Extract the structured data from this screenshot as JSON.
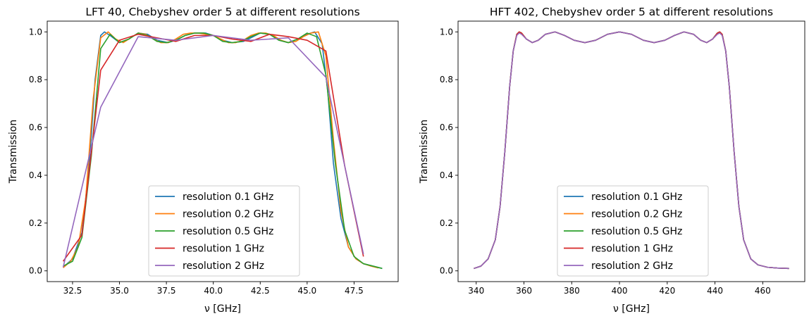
{
  "chart_data": [
    {
      "type": "line",
      "title": "LFT 40, Chebyshev order 5 at different resolutions",
      "xlabel": "ν [GHz]",
      "ylabel": "Transmission",
      "xlim": [
        31.15,
        49.85
      ],
      "ylim": [
        -0.045,
        1.045
      ],
      "xticks": [
        32.5,
        35.0,
        37.5,
        40.0,
        42.5,
        45.0,
        47.5
      ],
      "xtick_labels": [
        "32.5",
        "35.0",
        "37.5",
        "40.0",
        "42.5",
        "45.0",
        "47.5"
      ],
      "yticks": [
        0.0,
        0.2,
        0.4,
        0.6,
        0.8,
        1.0
      ],
      "ytick_labels": [
        "0.0",
        "0.2",
        "0.4",
        "0.6",
        "0.8",
        "1.0"
      ],
      "grid": false,
      "legend_position": "lower-center",
      "series": [
        {
          "name": "resolution 0.1 GHz",
          "color": "#1f77b4",
          "x": [
            32.0,
            32.5,
            33.0,
            33.4,
            33.7,
            34.0,
            34.2,
            34.5,
            35.0,
            35.5,
            36.0,
            36.5,
            37.0,
            37.6,
            38.0,
            38.5,
            39.0,
            39.6,
            40.0,
            40.5,
            41.0,
            41.6,
            42.0,
            42.5,
            43.0,
            43.5,
            44.0,
            44.5,
            45.0,
            45.4,
            45.8,
            46.1,
            46.4,
            46.8,
            47.2,
            47.6,
            48.0,
            48.5,
            49.0
          ],
          "y": [
            0.015,
            0.05,
            0.16,
            0.45,
            0.8,
            0.985,
            1.0,
            0.985,
            0.955,
            0.97,
            0.995,
            0.99,
            0.965,
            0.955,
            0.965,
            0.985,
            0.995,
            0.995,
            0.985,
            0.965,
            0.955,
            0.96,
            0.975,
            0.995,
            0.99,
            0.965,
            0.955,
            0.97,
            0.99,
            1.0,
            0.95,
            0.75,
            0.45,
            0.22,
            0.1,
            0.05,
            0.03,
            0.02,
            0.01
          ]
        },
        {
          "name": "resolution 0.2 GHz",
          "color": "#ff7f0e",
          "x": [
            32.0,
            32.4,
            32.8,
            33.2,
            33.6,
            34.0,
            34.4,
            34.8,
            35.2,
            35.6,
            36.0,
            36.4,
            36.8,
            37.2,
            37.6,
            38.0,
            38.4,
            38.8,
            39.2,
            39.6,
            40.0,
            40.4,
            40.8,
            41.2,
            41.6,
            42.0,
            42.4,
            42.8,
            43.2,
            43.6,
            44.0,
            44.4,
            44.8,
            45.2,
            45.6,
            46.0,
            46.4,
            46.8,
            47.2,
            47.6,
            48.0,
            48.4,
            48.8
          ],
          "y": [
            0.013,
            0.04,
            0.1,
            0.3,
            0.72,
            0.975,
            1.0,
            0.97,
            0.955,
            0.975,
            0.995,
            0.99,
            0.97,
            0.955,
            0.955,
            0.97,
            0.99,
            0.995,
            0.995,
            0.99,
            0.985,
            0.97,
            0.955,
            0.955,
            0.965,
            0.985,
            0.995,
            0.995,
            0.985,
            0.965,
            0.955,
            0.96,
            0.98,
            0.995,
            1.0,
            0.9,
            0.55,
            0.25,
            0.1,
            0.05,
            0.03,
            0.02,
            0.012
          ]
        },
        {
          "name": "resolution 0.5 GHz",
          "color": "#2ca02c",
          "x": [
            32.0,
            32.5,
            33.0,
            33.5,
            34.0,
            34.5,
            35.0,
            35.5,
            36.0,
            36.5,
            37.0,
            37.5,
            38.0,
            38.5,
            39.0,
            39.5,
            40.0,
            40.5,
            41.0,
            41.5,
            42.0,
            42.5,
            43.0,
            43.5,
            44.0,
            44.5,
            45.0,
            45.5,
            46.0,
            46.5,
            47.0,
            47.5,
            48.0,
            48.5,
            49.0
          ],
          "y": [
            0.02,
            0.04,
            0.14,
            0.48,
            0.93,
            0.99,
            0.955,
            0.97,
            0.995,
            0.985,
            0.96,
            0.955,
            0.965,
            0.985,
            0.995,
            0.995,
            0.985,
            0.96,
            0.955,
            0.96,
            0.98,
            0.995,
            0.99,
            0.965,
            0.955,
            0.97,
            0.995,
            0.98,
            0.82,
            0.45,
            0.17,
            0.06,
            0.03,
            0.02,
            0.01
          ]
        },
        {
          "name": "resolution 1 GHz",
          "color": "#d62728",
          "x": [
            32.0,
            33.0,
            34.0,
            35.0,
            36.0,
            37.0,
            38.0,
            39.0,
            40.0,
            41.0,
            42.0,
            43.0,
            44.0,
            45.0,
            46.0,
            47.0,
            48.0
          ],
          "y": [
            0.04,
            0.15,
            0.84,
            0.965,
            0.99,
            0.975,
            0.96,
            0.985,
            0.985,
            0.97,
            0.96,
            0.99,
            0.98,
            0.965,
            0.92,
            0.44,
            0.06
          ]
        },
        {
          "name": "resolution 2 GHz",
          "color": "#9467bd",
          "x": [
            32.0,
            34.0,
            36.0,
            38.0,
            40.0,
            42.0,
            44.0,
            46.0,
            48.0
          ],
          "y": [
            0.015,
            0.685,
            0.98,
            0.965,
            0.985,
            0.965,
            0.975,
            0.81,
            0.07
          ]
        }
      ]
    },
    {
      "type": "line",
      "title": "HFT 402, Chebyshev order 5 at different resolutions",
      "xlabel": "ν [GHz]",
      "ylabel": "Transmission",
      "xlim": [
        332.4,
        477.6
      ],
      "ylim": [
        -0.045,
        1.045
      ],
      "xticks": [
        340,
        360,
        380,
        400,
        420,
        440,
        460
      ],
      "xtick_labels": [
        "340",
        "360",
        "380",
        "400",
        "420",
        "440",
        "460"
      ],
      "yticks": [
        0.0,
        0.2,
        0.4,
        0.6,
        0.8,
        1.0
      ],
      "ytick_labels": [
        "0.0",
        "0.2",
        "0.4",
        "0.6",
        "0.8",
        "1.0"
      ],
      "grid": false,
      "legend_position": "lower-center",
      "series": [
        {
          "name": "resolution 0.1 GHz",
          "color": "#1f77b4",
          "x": [
            339,
            342,
            345,
            348,
            350,
            352,
            354,
            355.5,
            357,
            358,
            359,
            361,
            363.5,
            366,
            369,
            373,
            377,
            381,
            385.5,
            390,
            395,
            400,
            405,
            410,
            414.5,
            419,
            423,
            427,
            431,
            434,
            436.5,
            439,
            441,
            442,
            443,
            444.5,
            446,
            448,
            450,
            452,
            455,
            458,
            462,
            466,
            471
          ],
          "y": [
            0.01,
            0.02,
            0.05,
            0.13,
            0.27,
            0.5,
            0.77,
            0.92,
            0.99,
            1.0,
            0.995,
            0.97,
            0.955,
            0.965,
            0.99,
            1.0,
            0.985,
            0.965,
            0.955,
            0.965,
            0.99,
            1.0,
            0.99,
            0.965,
            0.955,
            0.965,
            0.985,
            1.0,
            0.99,
            0.965,
            0.955,
            0.97,
            0.995,
            1.0,
            0.99,
            0.92,
            0.77,
            0.5,
            0.27,
            0.13,
            0.05,
            0.025,
            0.015,
            0.012,
            0.01
          ]
        },
        {
          "name": "resolution 0.2 GHz",
          "color": "#ff7f0e",
          "x": [
            339,
            342,
            345,
            348,
            350,
            352,
            354,
            355.5,
            357,
            358,
            359,
            361,
            363.5,
            366,
            369,
            373,
            377,
            381,
            385.5,
            390,
            395,
            400,
            405,
            410,
            414.5,
            419,
            423,
            427,
            431,
            434,
            436.5,
            439,
            441,
            442,
            443,
            444.5,
            446,
            448,
            450,
            452,
            455,
            458,
            462,
            466,
            471
          ],
          "y": [
            0.01,
            0.02,
            0.05,
            0.13,
            0.27,
            0.5,
            0.77,
            0.92,
            0.99,
            1.0,
            0.995,
            0.97,
            0.955,
            0.965,
            0.99,
            1.0,
            0.985,
            0.965,
            0.955,
            0.965,
            0.99,
            1.0,
            0.99,
            0.965,
            0.955,
            0.965,
            0.985,
            1.0,
            0.99,
            0.965,
            0.955,
            0.97,
            0.995,
            1.0,
            0.99,
            0.92,
            0.77,
            0.5,
            0.27,
            0.13,
            0.05,
            0.025,
            0.015,
            0.012,
            0.01
          ]
        },
        {
          "name": "resolution 0.5 GHz",
          "color": "#2ca02c",
          "x": [
            339,
            342,
            345,
            348,
            350,
            352,
            354,
            355.5,
            357,
            358,
            359,
            361,
            363.5,
            366,
            369,
            373,
            377,
            381,
            385.5,
            390,
            395,
            400,
            405,
            410,
            414.5,
            419,
            423,
            427,
            431,
            434,
            436.5,
            439,
            441,
            442,
            443,
            444.5,
            446,
            448,
            450,
            452,
            455,
            458,
            462,
            466,
            471
          ],
          "y": [
            0.01,
            0.02,
            0.05,
            0.13,
            0.27,
            0.5,
            0.77,
            0.92,
            0.99,
            1.0,
            0.995,
            0.97,
            0.955,
            0.965,
            0.99,
            1.0,
            0.985,
            0.965,
            0.955,
            0.965,
            0.99,
            1.0,
            0.99,
            0.965,
            0.955,
            0.965,
            0.985,
            1.0,
            0.99,
            0.965,
            0.955,
            0.97,
            0.995,
            1.0,
            0.99,
            0.92,
            0.77,
            0.5,
            0.27,
            0.13,
            0.05,
            0.025,
            0.015,
            0.012,
            0.01
          ]
        },
        {
          "name": "resolution 1 GHz",
          "color": "#d62728",
          "x": [
            339,
            342,
            345,
            348,
            350,
            352,
            354,
            355.5,
            357,
            358,
            359,
            361,
            363.5,
            366,
            369,
            373,
            377,
            381,
            385.5,
            390,
            395,
            400,
            405,
            410,
            414.5,
            419,
            423,
            427,
            431,
            434,
            436.5,
            439,
            441,
            442,
            443,
            444.5,
            446,
            448,
            450,
            452,
            455,
            458,
            462,
            466,
            471
          ],
          "y": [
            0.01,
            0.02,
            0.05,
            0.13,
            0.27,
            0.5,
            0.77,
            0.92,
            0.99,
            1.0,
            0.995,
            0.97,
            0.955,
            0.965,
            0.99,
            1.0,
            0.985,
            0.965,
            0.955,
            0.965,
            0.99,
            1.0,
            0.99,
            0.965,
            0.955,
            0.965,
            0.985,
            1.0,
            0.99,
            0.965,
            0.955,
            0.97,
            0.995,
            1.0,
            0.99,
            0.92,
            0.77,
            0.5,
            0.27,
            0.13,
            0.05,
            0.025,
            0.015,
            0.012,
            0.01
          ]
        },
        {
          "name": "resolution 2 GHz",
          "color": "#9467bd",
          "x": [
            339,
            342,
            345,
            348,
            350,
            352,
            354,
            355.5,
            357,
            358,
            359,
            361,
            363.5,
            366,
            369,
            373,
            377,
            381,
            385.5,
            390,
            395,
            400,
            405,
            410,
            414.5,
            419,
            423,
            427,
            431,
            434,
            436.5,
            439,
            441,
            442,
            443,
            444.5,
            446,
            448,
            450,
            452,
            455,
            458,
            462,
            466,
            471
          ],
          "y": [
            0.01,
            0.02,
            0.05,
            0.13,
            0.27,
            0.5,
            0.77,
            0.92,
            0.985,
            0.995,
            0.99,
            0.97,
            0.955,
            0.965,
            0.99,
            1.0,
            0.985,
            0.965,
            0.955,
            0.965,
            0.99,
            1.0,
            0.99,
            0.965,
            0.955,
            0.965,
            0.985,
            1.0,
            0.99,
            0.965,
            0.955,
            0.97,
            0.99,
            0.995,
            0.985,
            0.92,
            0.77,
            0.5,
            0.27,
            0.13,
            0.05,
            0.025,
            0.015,
            0.012,
            0.01
          ]
        }
      ]
    }
  ]
}
